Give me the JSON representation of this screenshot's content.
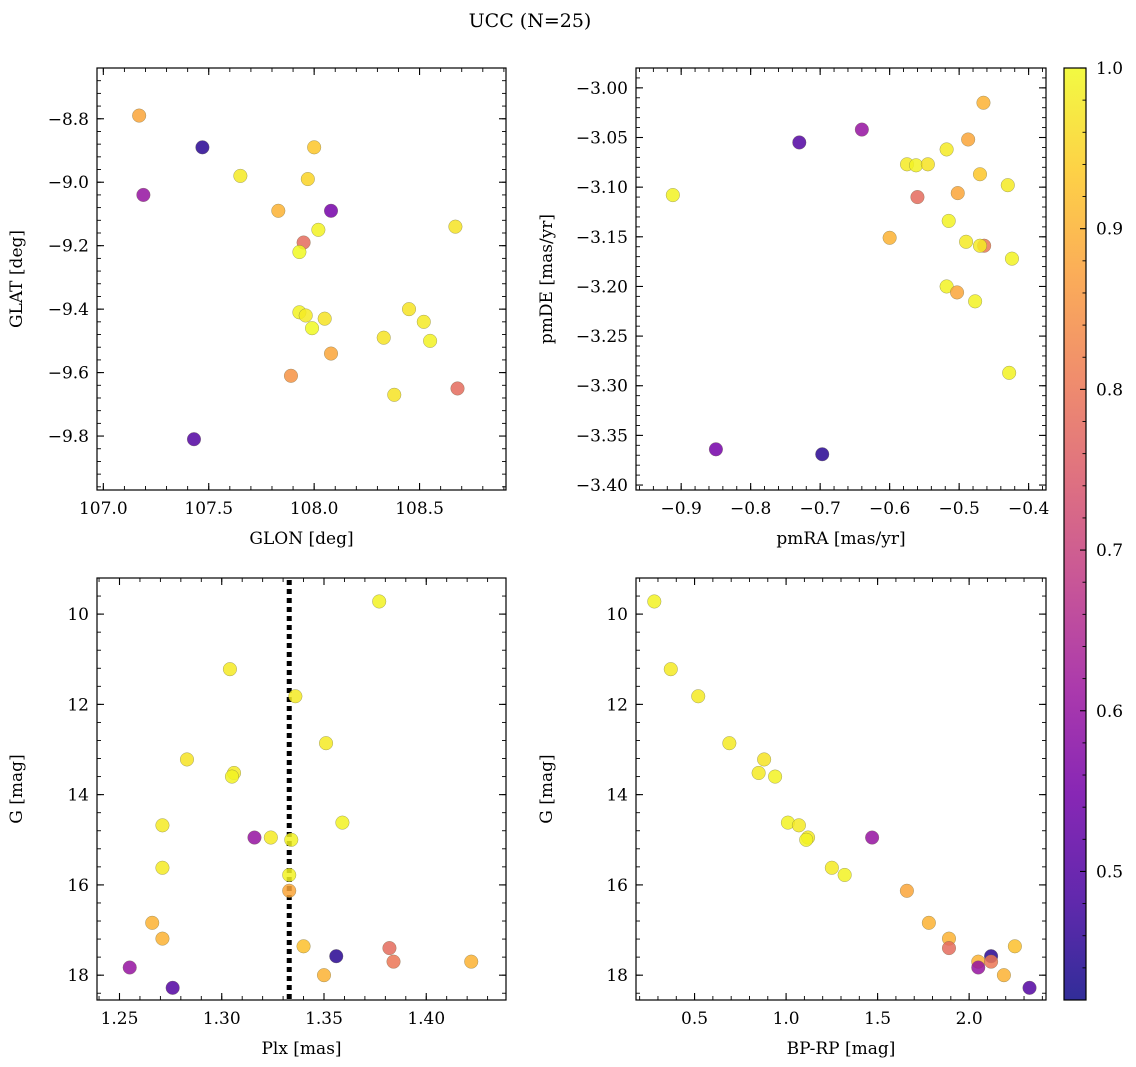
{
  "figure": {
    "title": "UCC (N=25)"
  },
  "colorbar": {
    "range": [
      0.42,
      1.0
    ],
    "ticks": [
      0.5,
      0.6,
      0.7,
      0.8,
      0.9,
      1.0
    ],
    "tick_labels": [
      "0.5",
      "0.6",
      "0.7",
      "0.8",
      "0.9",
      "1.0"
    ],
    "colormap": "plasma",
    "colormap_stops": [
      "#0d0887",
      "#47039f",
      "#7301a8",
      "#9c179e",
      "#bd3786",
      "#d8576b",
      "#ed7953",
      "#fa9e3b",
      "#fdc926",
      "#f0f921"
    ]
  },
  "chart_data": [
    {
      "type": "scatter",
      "xlabel": "GLON [deg]",
      "ylabel": "GLAT [deg]",
      "xlim": [
        106.97,
        108.91
      ],
      "ylim": [
        -9.97,
        -8.64
      ],
      "y_inverted": false,
      "xticks": [
        107.0,
        107.5,
        108.0,
        108.5
      ],
      "xtick_labels": [
        "107.0",
        "107.5",
        "108.0",
        "108.5"
      ],
      "yticks": [
        -9.8,
        -9.6,
        -9.4,
        -9.2,
        -9.0,
        -8.8
      ],
      "ytick_labels": [
        "−9.8",
        "−9.6",
        "−9.4",
        "−9.2",
        "−9.0",
        "−8.8"
      ],
      "points": [
        {
          "x": 107.17,
          "y": -8.79,
          "c": 0.88
        },
        {
          "x": 107.47,
          "y": -8.89,
          "c": 0.45
        },
        {
          "x": 107.19,
          "y": -9.04,
          "c": 0.6
        },
        {
          "x": 107.65,
          "y": -8.98,
          "c": 0.98
        },
        {
          "x": 108.0,
          "y": -8.89,
          "c": 0.93
        },
        {
          "x": 107.97,
          "y": -8.99,
          "c": 0.95
        },
        {
          "x": 107.83,
          "y": -9.09,
          "c": 0.9
        },
        {
          "x": 108.08,
          "y": -9.09,
          "c": 0.55
        },
        {
          "x": 108.02,
          "y": -9.15,
          "c": 0.99
        },
        {
          "x": 107.95,
          "y": -9.19,
          "c": 0.78
        },
        {
          "x": 107.93,
          "y": -9.22,
          "c": 1.0
        },
        {
          "x": 108.67,
          "y": -9.14,
          "c": 0.97
        },
        {
          "x": 107.93,
          "y": -9.41,
          "c": 0.99
        },
        {
          "x": 107.96,
          "y": -9.42,
          "c": 0.98
        },
        {
          "x": 108.05,
          "y": -9.43,
          "c": 0.97
        },
        {
          "x": 107.99,
          "y": -9.46,
          "c": 1.0
        },
        {
          "x": 108.45,
          "y": -9.4,
          "c": 0.97
        },
        {
          "x": 108.52,
          "y": -9.44,
          "c": 0.98
        },
        {
          "x": 108.33,
          "y": -9.49,
          "c": 0.97
        },
        {
          "x": 108.55,
          "y": -9.5,
          "c": 0.99
        },
        {
          "x": 108.08,
          "y": -9.54,
          "c": 0.88
        },
        {
          "x": 107.89,
          "y": -9.61,
          "c": 0.85
        },
        {
          "x": 108.38,
          "y": -9.67,
          "c": 0.97
        },
        {
          "x": 108.68,
          "y": -9.65,
          "c": 0.78
        },
        {
          "x": 107.43,
          "y": -9.81,
          "c": 0.5
        }
      ]
    },
    {
      "type": "scatter",
      "xlabel": "pmRA [mas/yr]",
      "ylabel": "pmDE [mas/yr]",
      "xlim": [
        -0.965,
        -0.375
      ],
      "ylim": [
        -3.405,
        -2.98
      ],
      "y_inverted": false,
      "xticks": [
        -0.9,
        -0.8,
        -0.7,
        -0.6,
        -0.5,
        -0.4
      ],
      "xtick_labels": [
        "−0.9",
        "−0.8",
        "−0.7",
        "−0.6",
        "−0.5",
        "−0.4"
      ],
      "yticks": [
        -3.4,
        -3.35,
        -3.3,
        -3.25,
        -3.2,
        -3.15,
        -3.1,
        -3.05,
        -3.0
      ],
      "ytick_labels": [
        "−3.40",
        "−3.35",
        "−3.30",
        "−3.25",
        "−3.20",
        "−3.15",
        "−3.10",
        "−3.05",
        "−3.00"
      ],
      "points": [
        {
          "x": -0.912,
          "y": -3.108,
          "c": 0.99
        },
        {
          "x": -0.73,
          "y": -3.055,
          "c": 0.5
        },
        {
          "x": -0.64,
          "y": -3.042,
          "c": 0.6
        },
        {
          "x": -0.575,
          "y": -3.077,
          "c": 0.98
        },
        {
          "x": -0.562,
          "y": -3.078,
          "c": 0.99
        },
        {
          "x": -0.545,
          "y": -3.077,
          "c": 0.97
        },
        {
          "x": -0.518,
          "y": -3.062,
          "c": 0.98
        },
        {
          "x": -0.487,
          "y": -3.052,
          "c": 0.88
        },
        {
          "x": -0.465,
          "y": -3.015,
          "c": 0.9
        },
        {
          "x": -0.47,
          "y": -3.087,
          "c": 0.93
        },
        {
          "x": -0.43,
          "y": -3.098,
          "c": 0.98
        },
        {
          "x": -0.56,
          "y": -3.11,
          "c": 0.78
        },
        {
          "x": -0.502,
          "y": -3.106,
          "c": 0.88
        },
        {
          "x": -0.515,
          "y": -3.134,
          "c": 0.99
        },
        {
          "x": -0.6,
          "y": -3.151,
          "c": 0.9
        },
        {
          "x": -0.49,
          "y": -3.155,
          "c": 0.98
        },
        {
          "x": -0.464,
          "y": -3.159,
          "c": 0.8
        },
        {
          "x": -0.47,
          "y": -3.159,
          "c": 0.98
        },
        {
          "x": -0.424,
          "y": -3.172,
          "c": 0.99
        },
        {
          "x": -0.518,
          "y": -3.2,
          "c": 0.99
        },
        {
          "x": -0.503,
          "y": -3.206,
          "c": 0.88
        },
        {
          "x": -0.477,
          "y": -3.215,
          "c": 0.99
        },
        {
          "x": -0.428,
          "y": -3.287,
          "c": 0.99
        },
        {
          "x": -0.85,
          "y": -3.364,
          "c": 0.55
        },
        {
          "x": -0.697,
          "y": -3.369,
          "c": 0.45
        }
      ]
    },
    {
      "type": "scatter",
      "xlabel": "Plx [mas]",
      "ylabel": "G [mag]",
      "xlim": [
        1.239,
        1.439
      ],
      "ylim": [
        9.2,
        18.55
      ],
      "y_inverted": true,
      "vline": 1.333,
      "xticks": [
        1.25,
        1.3,
        1.35,
        1.4
      ],
      "xtick_labels": [
        "1.25",
        "1.30",
        "1.35",
        "1.40"
      ],
      "yticks": [
        10,
        12,
        14,
        16,
        18
      ],
      "ytick_labels": [
        "10",
        "12",
        "14",
        "16",
        "18"
      ],
      "points": [
        {
          "x": 1.377,
          "y": 9.72,
          "c": 0.99
        },
        {
          "x": 1.304,
          "y": 11.22,
          "c": 0.98
        },
        {
          "x": 1.336,
          "y": 11.82,
          "c": 0.98
        },
        {
          "x": 1.351,
          "y": 12.86,
          "c": 0.98
        },
        {
          "x": 1.283,
          "y": 13.22,
          "c": 0.97
        },
        {
          "x": 1.306,
          "y": 13.52,
          "c": 0.98
        },
        {
          "x": 1.305,
          "y": 13.6,
          "c": 0.99
        },
        {
          "x": 1.271,
          "y": 14.68,
          "c": 0.98
        },
        {
          "x": 1.359,
          "y": 14.62,
          "c": 0.99
        },
        {
          "x": 1.316,
          "y": 14.95,
          "c": 0.6
        },
        {
          "x": 1.324,
          "y": 14.95,
          "c": 0.98
        },
        {
          "x": 1.334,
          "y": 15.0,
          "c": 0.99
        },
        {
          "x": 1.271,
          "y": 15.62,
          "c": 0.98
        },
        {
          "x": 1.333,
          "y": 15.78,
          "c": 0.99
        },
        {
          "x": 1.333,
          "y": 16.13,
          "c": 0.88
        },
        {
          "x": 1.266,
          "y": 16.84,
          "c": 0.9
        },
        {
          "x": 1.271,
          "y": 17.19,
          "c": 0.9
        },
        {
          "x": 1.34,
          "y": 17.36,
          "c": 0.92
        },
        {
          "x": 1.382,
          "y": 17.4,
          "c": 0.78
        },
        {
          "x": 1.356,
          "y": 17.58,
          "c": 0.45
        },
        {
          "x": 1.384,
          "y": 17.7,
          "c": 0.8
        },
        {
          "x": 1.422,
          "y": 17.7,
          "c": 0.9
        },
        {
          "x": 1.255,
          "y": 17.83,
          "c": 0.6
        },
        {
          "x": 1.35,
          "y": 18.0,
          "c": 0.9
        },
        {
          "x": 1.276,
          "y": 18.28,
          "c": 0.5
        }
      ]
    },
    {
      "type": "scatter",
      "xlabel": "BP-RP [mag]",
      "ylabel": "G [mag]",
      "xlim": [
        0.18,
        2.42
      ],
      "ylim": [
        9.2,
        18.55
      ],
      "y_inverted": true,
      "xticks": [
        0.5,
        1.0,
        1.5,
        2.0
      ],
      "xtick_labels": [
        "0.5",
        "1.0",
        "1.5",
        "2.0"
      ],
      "yticks": [
        10,
        12,
        14,
        16,
        18
      ],
      "ytick_labels": [
        "10",
        "12",
        "14",
        "16",
        "18"
      ],
      "points": [
        {
          "x": 0.28,
          "y": 9.72,
          "c": 0.99
        },
        {
          "x": 0.37,
          "y": 11.22,
          "c": 0.98
        },
        {
          "x": 0.52,
          "y": 11.82,
          "c": 0.98
        },
        {
          "x": 0.69,
          "y": 12.86,
          "c": 0.98
        },
        {
          "x": 0.88,
          "y": 13.22,
          "c": 0.97
        },
        {
          "x": 0.85,
          "y": 13.52,
          "c": 0.98
        },
        {
          "x": 0.94,
          "y": 13.6,
          "c": 0.99
        },
        {
          "x": 1.01,
          "y": 14.62,
          "c": 0.99
        },
        {
          "x": 1.07,
          "y": 14.68,
          "c": 0.98
        },
        {
          "x": 1.12,
          "y": 14.95,
          "c": 0.98
        },
        {
          "x": 1.11,
          "y": 15.0,
          "c": 0.99
        },
        {
          "x": 1.47,
          "y": 14.95,
          "c": 0.6
        },
        {
          "x": 1.25,
          "y": 15.62,
          "c": 0.98
        },
        {
          "x": 1.32,
          "y": 15.78,
          "c": 0.99
        },
        {
          "x": 1.66,
          "y": 16.13,
          "c": 0.88
        },
        {
          "x": 1.78,
          "y": 16.84,
          "c": 0.9
        },
        {
          "x": 1.89,
          "y": 17.19,
          "c": 0.9
        },
        {
          "x": 1.89,
          "y": 17.4,
          "c": 0.78
        },
        {
          "x": 2.25,
          "y": 17.36,
          "c": 0.92
        },
        {
          "x": 2.12,
          "y": 17.58,
          "c": 0.45
        },
        {
          "x": 2.05,
          "y": 17.7,
          "c": 0.9
        },
        {
          "x": 2.12,
          "y": 17.7,
          "c": 0.8
        },
        {
          "x": 2.05,
          "y": 17.83,
          "c": 0.6
        },
        {
          "x": 2.19,
          "y": 18.0,
          "c": 0.9
        },
        {
          "x": 2.33,
          "y": 18.28,
          "c": 0.5
        }
      ]
    }
  ]
}
